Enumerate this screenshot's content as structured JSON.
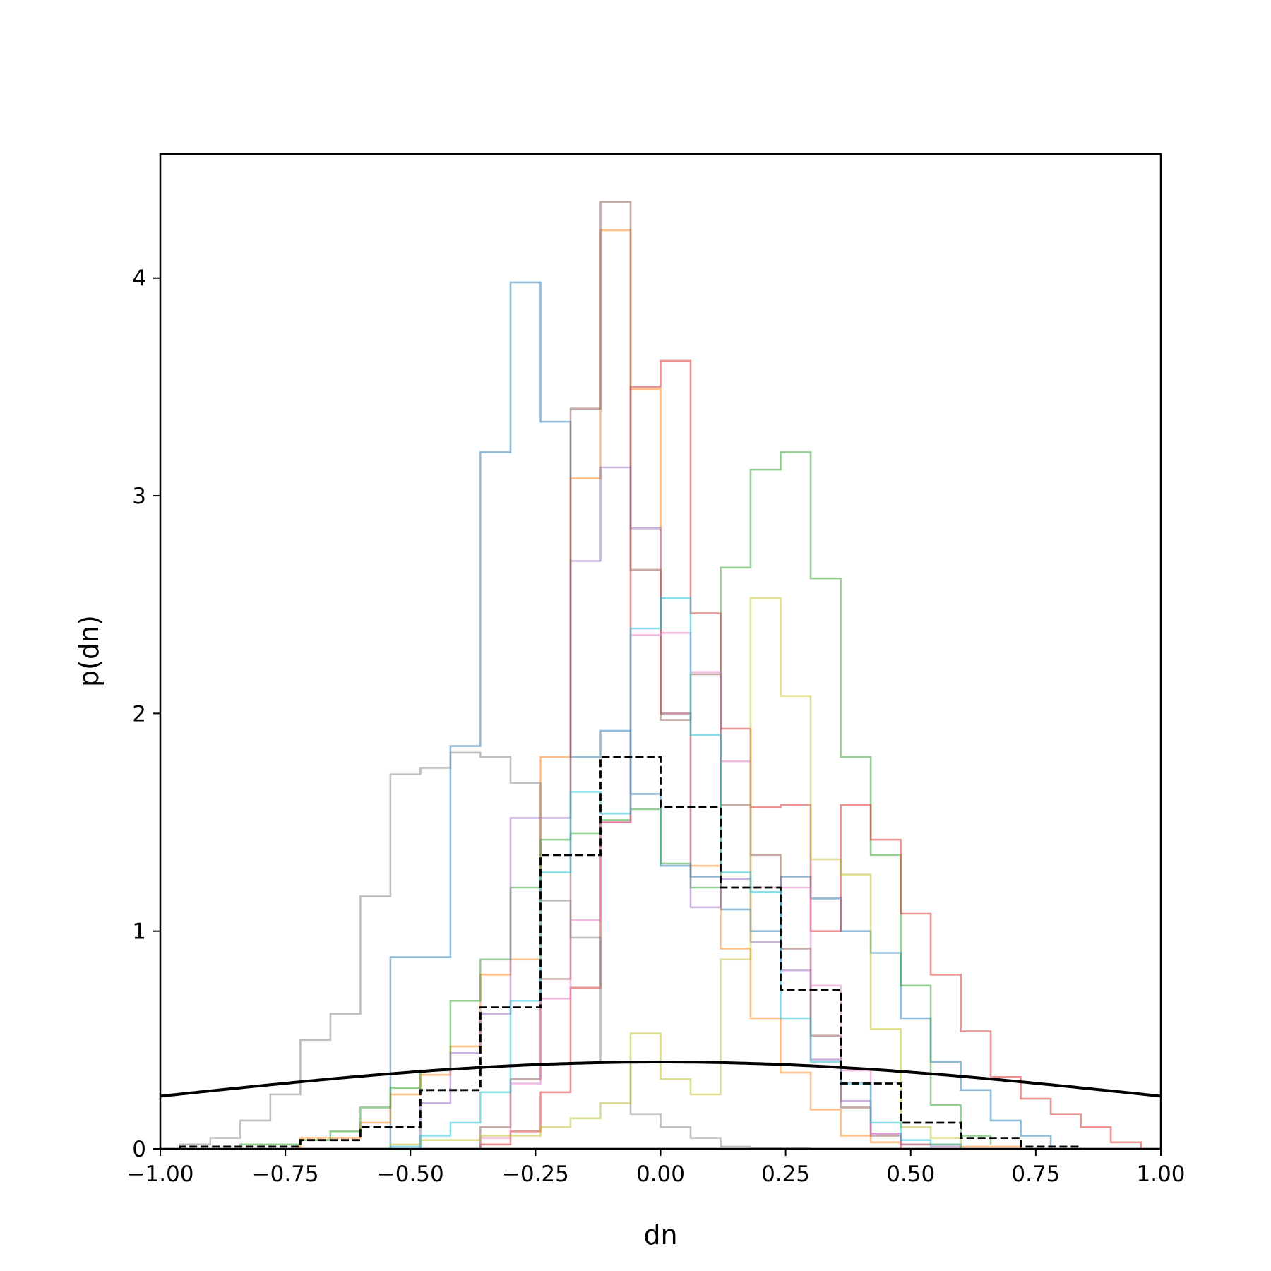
{
  "chart_data": {
    "type": "histogram",
    "xlabel": "dn",
    "ylabel": "p(dn)",
    "xlim": [
      -1.0,
      1.0
    ],
    "ylim": [
      0,
      4.57
    ],
    "grid": false,
    "xticks": [
      {
        "value": -1.0,
        "label": "−1.00"
      },
      {
        "value": -0.75,
        "label": "−0.75"
      },
      {
        "value": -0.5,
        "label": "−0.50"
      },
      {
        "value": -0.25,
        "label": "−0.25"
      },
      {
        "value": 0.0,
        "label": "0.00"
      },
      {
        "value": 0.25,
        "label": "0.25"
      },
      {
        "value": 0.5,
        "label": "0.50"
      },
      {
        "value": 0.75,
        "label": "0.75"
      },
      {
        "value": 1.0,
        "label": "1.00"
      }
    ],
    "yticks": [
      {
        "value": 0,
        "label": "0"
      },
      {
        "value": 1,
        "label": "1"
      },
      {
        "value": 2,
        "label": "2"
      },
      {
        "value": 3,
        "label": "3"
      },
      {
        "value": 4,
        "label": "4"
      }
    ],
    "series": [
      {
        "color": "#1f77b4",
        "edges": [
          -0.54,
          -0.42,
          -0.36,
          -0.3,
          -0.24,
          -0.18,
          -0.12,
          -0.06,
          0.0,
          0.06,
          0.12,
          0.18,
          0.24,
          0.3,
          0.36,
          0.42,
          0.48,
          0.54,
          0.6,
          0.66,
          0.72,
          0.78
        ],
        "values": [
          0.88,
          1.85,
          3.2,
          3.98,
          3.34,
          1.8,
          1.92,
          1.63,
          1.3,
          1.25,
          1.1,
          1.0,
          1.25,
          1.15,
          1.0,
          0.9,
          0.6,
          0.4,
          0.27,
          0.13,
          0.06
        ]
      },
      {
        "color": "#ff7f0e",
        "edges": [
          -0.72,
          -0.6,
          -0.54,
          -0.48,
          -0.42,
          -0.36,
          -0.3,
          -0.24,
          -0.18,
          -0.12,
          -0.06,
          0.0,
          0.06,
          0.12,
          0.18,
          0.24,
          0.3,
          0.36,
          0.42,
          0.48,
          0.54,
          0.6,
          0.66,
          0.72
        ],
        "values": [
          0.05,
          0.12,
          0.25,
          0.34,
          0.47,
          0.8,
          0.87,
          1.8,
          3.08,
          4.22,
          3.49,
          2.0,
          1.3,
          0.92,
          0.6,
          0.35,
          0.18,
          0.06,
          0.03,
          0.02,
          0.02,
          0.01,
          0.01
        ]
      },
      {
        "color": "#2ca02c",
        "edges": [
          -0.84,
          -0.72,
          -0.66,
          -0.6,
          -0.54,
          -0.48,
          -0.42,
          -0.36,
          -0.3,
          -0.24,
          -0.18,
          -0.12,
          -0.06,
          0.0,
          0.06,
          0.12,
          0.18,
          0.24,
          0.3,
          0.36,
          0.42,
          0.48,
          0.54,
          0.6,
          0.66
        ],
        "values": [
          0.02,
          0.04,
          0.08,
          0.19,
          0.28,
          0.36,
          0.68,
          0.87,
          1.2,
          1.42,
          1.45,
          1.51,
          1.56,
          1.31,
          1.2,
          2.67,
          3.12,
          3.2,
          2.62,
          1.8,
          1.35,
          0.75,
          0.2,
          0.06,
          0.02
        ]
      },
      {
        "color": "#d62728",
        "edges": [
          -0.36,
          -0.3,
          -0.24,
          -0.18,
          -0.12,
          -0.06,
          0.0,
          0.06,
          0.12,
          0.18,
          0.24,
          0.3,
          0.36,
          0.42,
          0.48,
          0.54,
          0.6,
          0.66,
          0.72,
          0.78,
          0.84,
          0.9,
          0.96
        ],
        "values": [
          0.02,
          0.08,
          0.26,
          0.74,
          1.5,
          3.5,
          3.62,
          2.46,
          1.93,
          1.57,
          1.58,
          1.0,
          1.58,
          1.42,
          1.08,
          0.8,
          0.54,
          0.33,
          0.23,
          0.16,
          0.1,
          0.03
        ]
      },
      {
        "color": "#9467bd",
        "edges": [
          -0.48,
          -0.42,
          -0.36,
          -0.3,
          -0.24,
          -0.18,
          -0.12,
          -0.06,
          0.0,
          0.06,
          0.12,
          0.18,
          0.24,
          0.3,
          0.36,
          0.42,
          0.48,
          0.54,
          0.6
        ],
        "values": [
          0.21,
          0.44,
          0.62,
          1.52,
          1.52,
          2.7,
          3.13,
          2.85,
          2.0,
          1.11,
          1.24,
          0.95,
          0.82,
          0.41,
          0.22,
          0.07,
          0.02,
          0.01
        ]
      },
      {
        "color": "#8c564b",
        "edges": [
          -0.36,
          -0.3,
          -0.24,
          -0.18,
          -0.12,
          -0.06,
          0.0,
          0.06,
          0.12,
          0.18,
          0.24,
          0.3,
          0.36,
          0.42,
          0.48
        ],
        "values": [
          0.1,
          0.32,
          0.78,
          3.4,
          4.35,
          2.66,
          1.97,
          2.18,
          1.58,
          1.35,
          0.92,
          0.52,
          0.19,
          0.06
        ]
      },
      {
        "color": "#e377c2",
        "edges": [
          -0.36,
          -0.3,
          -0.24,
          -0.18,
          -0.12,
          -0.06,
          0.0,
          0.06,
          0.12,
          0.18,
          0.24,
          0.3,
          0.36,
          0.42,
          0.48
        ],
        "values": [
          0.05,
          0.3,
          0.69,
          1.05,
          1.5,
          2.36,
          2.37,
          2.19,
          1.78,
          1.2,
          1.2,
          0.75,
          0.36,
          0.07
        ]
      },
      {
        "color": "#7f7f7f",
        "edges": [
          -0.96,
          -0.9,
          -0.84,
          -0.78,
          -0.72,
          -0.66,
          -0.6,
          -0.54,
          -0.48,
          -0.42,
          -0.36,
          -0.3,
          -0.24,
          -0.18,
          -0.12,
          -0.06,
          0.0,
          0.06,
          0.12,
          0.18,
          0.24,
          0.3
        ],
        "values": [
          0.02,
          0.05,
          0.13,
          0.25,
          0.5,
          0.62,
          1.16,
          1.72,
          1.75,
          1.82,
          1.8,
          1.68,
          1.14,
          0.97,
          0.4,
          0.16,
          0.1,
          0.05,
          0.01,
          0.005,
          0.002
        ]
      },
      {
        "color": "#bcbd22",
        "edges": [
          -0.54,
          -0.48,
          -0.36,
          -0.24,
          -0.18,
          -0.12,
          -0.06,
          0.0,
          0.06,
          0.12,
          0.18,
          0.24,
          0.3,
          0.36,
          0.42,
          0.48,
          0.54,
          0.6
        ],
        "values": [
          0.02,
          0.04,
          0.06,
          0.1,
          0.14,
          0.21,
          0.53,
          0.32,
          0.25,
          0.87,
          2.53,
          2.08,
          1.33,
          1.26,
          0.55,
          0.1,
          0.05
        ]
      },
      {
        "color": "#17becf",
        "edges": [
          -0.54,
          -0.48,
          -0.42,
          -0.36,
          -0.3,
          -0.24,
          -0.18,
          -0.12,
          -0.06,
          0.0,
          0.06,
          0.12,
          0.18,
          0.24,
          0.3,
          0.36,
          0.42,
          0.48,
          0.54,
          0.6
        ],
        "values": [
          0.01,
          0.06,
          0.12,
          0.26,
          0.68,
          1.27,
          1.64,
          1.54,
          2.39,
          2.53,
          1.9,
          1.27,
          1.18,
          0.6,
          0.4,
          0.3,
          0.12,
          0.04,
          0.02
        ]
      }
    ],
    "reference_step": {
      "color": "#000000",
      "dash": "dashed",
      "edges": [
        -0.96,
        -0.72,
        -0.6,
        -0.48,
        -0.36,
        -0.24,
        -0.12,
        0.0,
        0.12,
        0.24,
        0.36,
        0.48,
        0.6,
        0.72,
        0.84
      ],
      "values": [
        0.01,
        0.04,
        0.1,
        0.27,
        0.65,
        1.35,
        1.8,
        1.57,
        1.2,
        0.73,
        0.3,
        0.12,
        0.05,
        0.01
      ]
    },
    "reference_curve": {
      "color": "#000000",
      "type": "gaussian",
      "mean": 0.0,
      "sigma": 1.0
    }
  }
}
